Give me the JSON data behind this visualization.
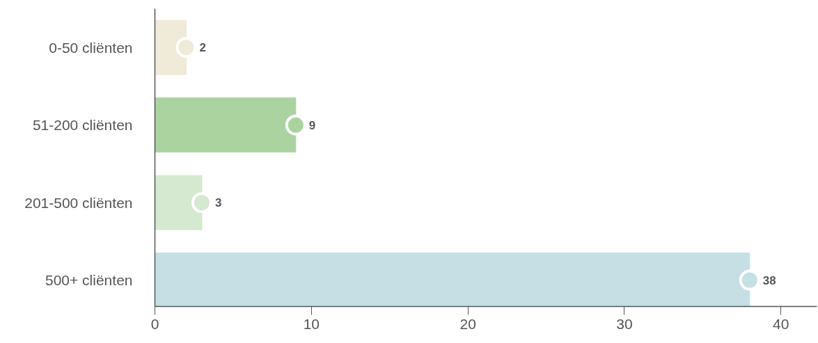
{
  "chart_data": {
    "type": "bar",
    "orientation": "horizontal",
    "categories": [
      "0-50 cliënten",
      "51-200 cliënten",
      "201-500 cliënten",
      "500+ cliënten"
    ],
    "series": [
      {
        "values": [
          2,
          9,
          3,
          38
        ],
        "colors": [
          "#f0ead8",
          "#aad3a0",
          "#d5e8d0",
          "#c5dfe4"
        ]
      },
      {
        "type": "scatter",
        "values": [
          2,
          9,
          3,
          38
        ],
        "colors": [
          "#f0ead8",
          "#aad3a0",
          "#d5e8d0",
          "#c5dfe4"
        ],
        "marker": "circle",
        "data_labels": true
      }
    ],
    "xlim": [
      0,
      42.3
    ],
    "xticks": [
      0,
      10,
      20,
      30,
      40
    ],
    "grid": false
  }
}
